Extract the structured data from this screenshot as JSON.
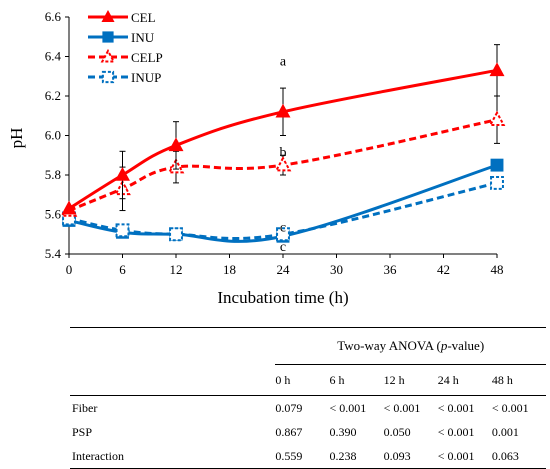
{
  "chart_data": {
    "type": "line",
    "title": "",
    "xlabel": "Incubation time (h)",
    "ylabel": "pH",
    "xlim": [
      0,
      48
    ],
    "ylim": [
      5.4,
      6.6
    ],
    "x_ticks": [
      0,
      6,
      12,
      18,
      24,
      30,
      36,
      42,
      48
    ],
    "y_ticks": [
      5.4,
      5.6,
      5.8,
      6.0,
      6.2,
      6.4,
      6.6
    ],
    "y_tick_labels": [
      "5.4",
      "5.6",
      "5.8",
      "6.0",
      "6.2",
      "6.4",
      "6.6"
    ],
    "legend_position": "top-left",
    "series": [
      {
        "name": "CEL",
        "color": "#ff0000",
        "line": "solid",
        "marker": "filled-triangle",
        "x": [
          0,
          6,
          12,
          24,
          48
        ],
        "y": [
          5.63,
          5.8,
          5.95,
          6.12,
          6.33
        ],
        "err": [
          0.0,
          0.12,
          0.12,
          0.12,
          0.13
        ]
      },
      {
        "name": "INU",
        "color": "#0070c0",
        "line": "solid",
        "marker": "filled-square",
        "x": [
          0,
          6,
          12,
          24,
          48
        ],
        "y": [
          5.57,
          5.51,
          5.5,
          5.49,
          5.85
        ],
        "err": [
          0.0,
          0.0,
          0.0,
          0.0,
          0.0
        ]
      },
      {
        "name": "CELP",
        "color": "#ff0000",
        "line": "dashed",
        "marker": "open-triangle",
        "x": [
          0,
          6,
          12,
          24,
          48
        ],
        "y": [
          5.62,
          5.73,
          5.84,
          5.85,
          6.08
        ],
        "err": [
          0.0,
          0.11,
          0.08,
          0.05,
          0.12
        ]
      },
      {
        "name": "INUP",
        "color": "#0070c0",
        "line": "dashed",
        "marker": "open-square",
        "x": [
          0,
          6,
          12,
          24,
          48
        ],
        "y": [
          5.58,
          5.52,
          5.5,
          5.5,
          5.76
        ],
        "err": [
          0.0,
          0.0,
          0.0,
          0.0,
          0.0
        ]
      }
    ],
    "annotations": [
      {
        "text": "a",
        "x": 24,
        "y": 6.38
      },
      {
        "text": "b",
        "x": 24,
        "y": 5.92
      },
      {
        "text": "c",
        "x": 24,
        "y": 5.54
      },
      {
        "text": "c",
        "x": 24,
        "y": 5.44
      }
    ]
  },
  "anova_table": {
    "caption_prefix": "Two-way ANOVA (",
    "caption_italic": "p",
    "caption_suffix": "-value)",
    "columns": [
      "0 h",
      "6 h",
      "12 h",
      "24 h",
      "48 h"
    ],
    "rows": [
      {
        "label": "Fiber",
        "values": [
          "0.079",
          "< 0.001",
          "< 0.001",
          "< 0.001",
          "< 0.001"
        ]
      },
      {
        "label": "PSP",
        "values": [
          "0.867",
          "0.390",
          "0.050",
          "< 0.001",
          "0.001"
        ]
      },
      {
        "label": "Interaction",
        "values": [
          "0.559",
          "0.238",
          "0.093",
          "< 0.001",
          "0.063"
        ]
      }
    ]
  }
}
